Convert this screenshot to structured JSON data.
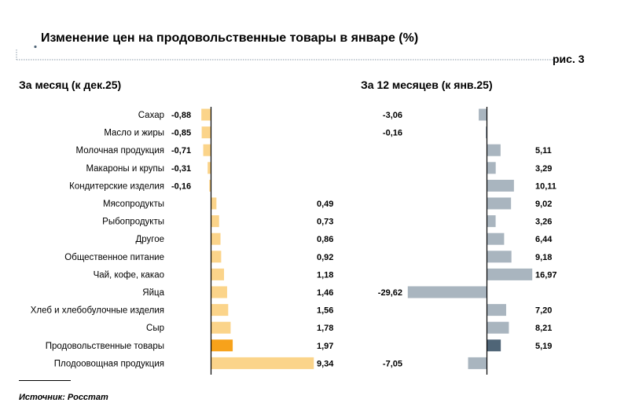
{
  "header": {
    "title": "Изменение цен на продовольственные товары в январе (%)",
    "figure_label": "рис. 3"
  },
  "footer": {
    "source": "Источник: Росстат"
  },
  "colors": {
    "month_bar": "#fbd48a",
    "month_bar_highlight": "#f7a21b",
    "year_bar": "#a9b5bf",
    "year_bar_highlight": "#4f6577",
    "axis": "#000000"
  },
  "chart_data": [
    {
      "type": "bar",
      "orientation": "horizontal",
      "title": "За месяц (к дек.25)",
      "categories": [
        "Сахар",
        "Масло и жиры",
        "Молочная продукция",
        "Макароны и крупы",
        "Кондитерские изделия",
        "Мясопродукты",
        "Рыбопродукты",
        "Другое",
        "Общественное питание",
        "Чай, кофе, какао",
        "Яйца",
        "Хлеб и хлебобулочные изделия",
        "Сыр",
        "Продовольственные товары",
        "Плодоовощная продукция"
      ],
      "values": [
        -0.88,
        -0.85,
        -0.71,
        -0.31,
        -0.16,
        0.49,
        0.73,
        0.86,
        0.92,
        1.18,
        1.46,
        1.56,
        1.78,
        1.97,
        9.34
      ],
      "labels": [
        "-0,88",
        "-0,85",
        "-0,71",
        "-0,31",
        "-0,16",
        "0,49",
        "0,73",
        "0,86",
        "0,92",
        "1,18",
        "1,46",
        "1,56",
        "1,78",
        "1,97",
        "9,34"
      ],
      "highlight": "Продовольственные товары",
      "xlim": [
        -1,
        9.34
      ]
    },
    {
      "type": "bar",
      "orientation": "horizontal",
      "title": "За 12 месяцев (к янв.25)",
      "categories": [
        "Сахар",
        "Масло и жиры",
        "Молочная продукция",
        "Макароны и крупы",
        "Кондитерские изделия",
        "Мясопродукты",
        "Рыбопродукты",
        "Другое",
        "Общественное питание",
        "Чай, кофе, какао",
        "Яйца",
        "Хлеб и хлебобулочные изделия",
        "Сыр",
        "Продовольственные товары",
        "Плодоовощная продукция"
      ],
      "values": [
        -3.06,
        -0.16,
        5.11,
        3.29,
        10.11,
        9.02,
        3.26,
        6.44,
        9.18,
        16.97,
        -29.62,
        7.2,
        8.21,
        5.19,
        -7.05
      ],
      "labels": [
        "-3,06",
        "-0,16",
        "5,11",
        "3,29",
        "10,11",
        "9,02",
        "3,26",
        "6,44",
        "9,18",
        "16,97",
        "-29,62",
        "7,20",
        "8,21",
        "5,19",
        "-7,05"
      ],
      "highlight": "Продовольственные товары",
      "xlim": [
        -29.62,
        16.97
      ]
    }
  ]
}
